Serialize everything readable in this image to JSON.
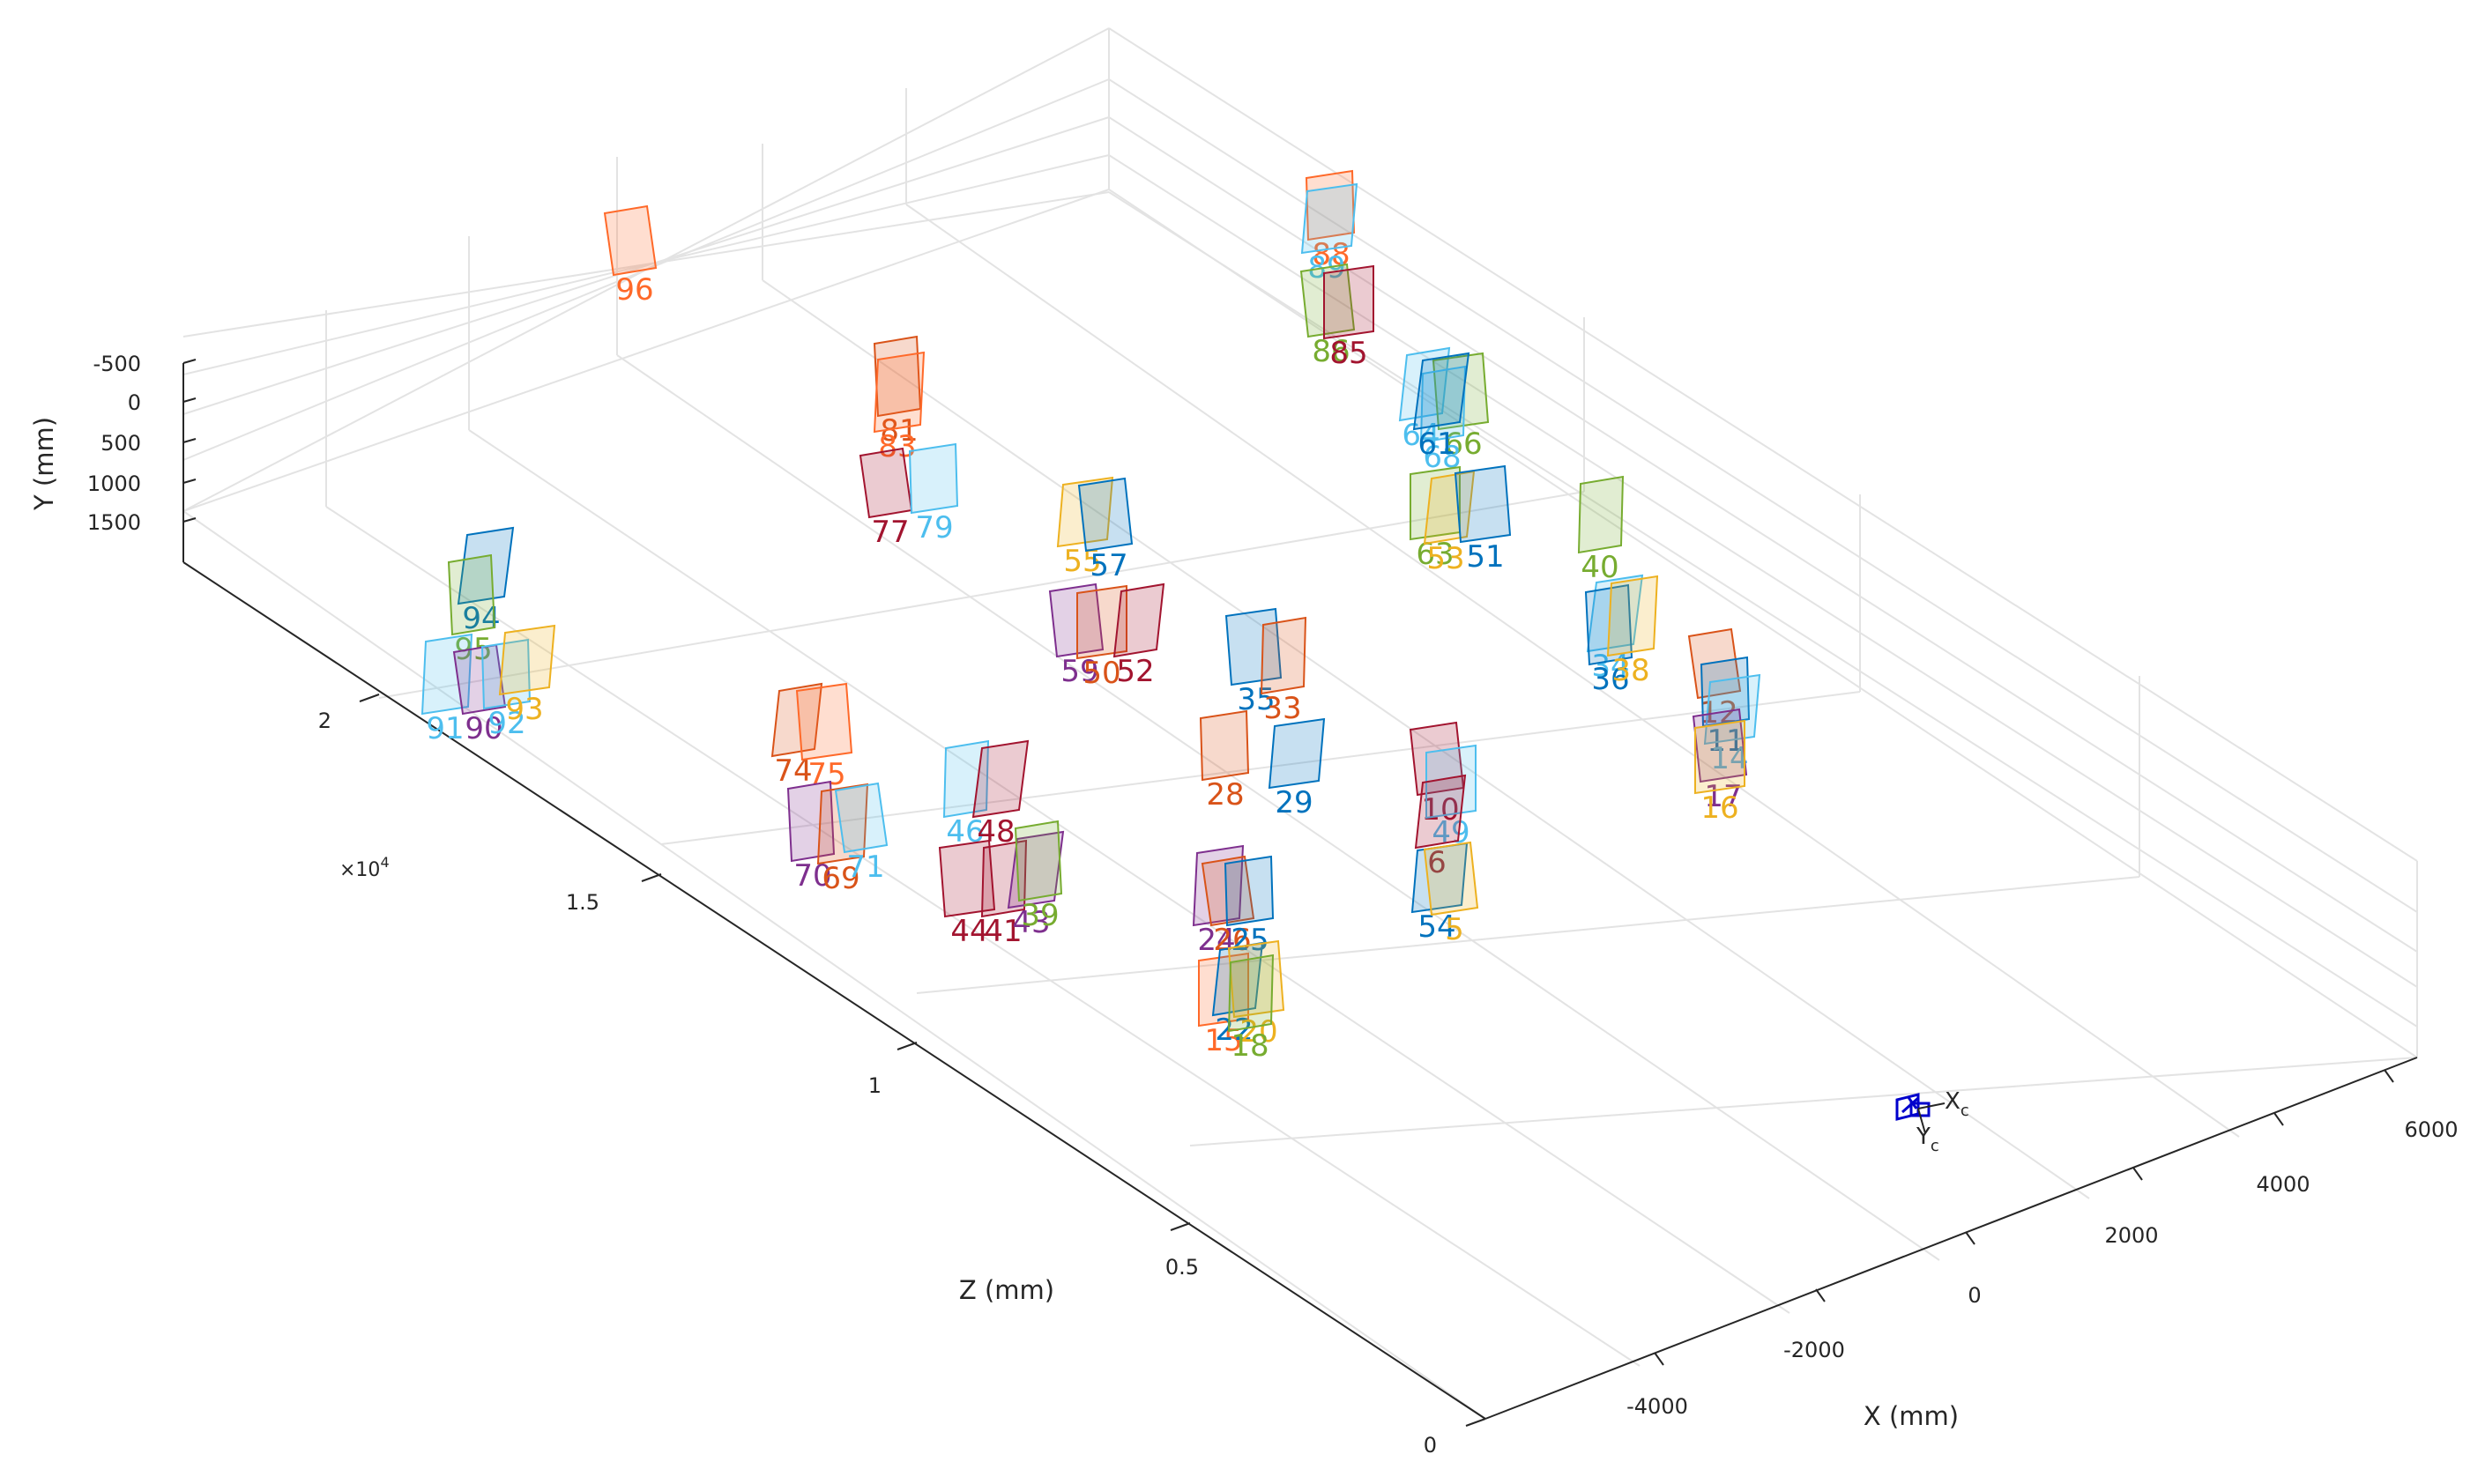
{
  "chart_data": {
    "type": "scatter",
    "subtype": "3d-extrinsics",
    "axes": {
      "x": {
        "label": "X (mm)",
        "ticks": [
          "-4000",
          "-2000",
          "0",
          "2000",
          "4000",
          "6000"
        ],
        "range": [
          -5000,
          6500
        ]
      },
      "y": {
        "label": "Y (mm)",
        "ticks": [
          "-500",
          "0",
          "500",
          "1000",
          "1500"
        ],
        "range": [
          -600,
          1800
        ]
      },
      "z": {
        "label": "Z (mm)",
        "ticks": [
          "0",
          "0.5",
          "1",
          "1.5",
          "2"
        ],
        "exponent_label": "×10",
        "exponent_power": "4",
        "range": [
          0,
          25000
        ]
      }
    },
    "grid": true,
    "camera": {
      "label_x": "X",
      "label_y": "Y",
      "subscript": "c",
      "color": "#0000cc"
    },
    "palette": [
      "#0072BD",
      "#D95319",
      "#EDB120",
      "#7E2F8E",
      "#77AC30",
      "#4DBEEE",
      "#A2142F",
      "#FF6929"
    ],
    "boards": [
      {
        "label": "96",
        "color": "#FF6929"
      },
      {
        "label": "88",
        "color": "#FF6929"
      },
      {
        "label": "89",
        "color": "#4DBEEE"
      },
      {
        "label": "86",
        "color": "#77AC30"
      },
      {
        "label": "85",
        "color": "#A2142F"
      },
      {
        "label": "64",
        "color": "#4DBEEE"
      },
      {
        "label": "66",
        "color": "#77AC30"
      },
      {
        "label": "68",
        "color": "#4DBEEE"
      },
      {
        "label": "61",
        "color": "#0072BD"
      },
      {
        "label": "81",
        "color": "#D95319"
      },
      {
        "label": "83",
        "color": "#FF6929"
      },
      {
        "label": "77",
        "color": "#A2142F"
      },
      {
        "label": "79",
        "color": "#4DBEEE"
      },
      {
        "label": "55",
        "color": "#EDB120"
      },
      {
        "label": "57",
        "color": "#0072BD"
      },
      {
        "label": "63",
        "color": "#77AC30"
      },
      {
        "label": "53",
        "color": "#EDB120"
      },
      {
        "label": "51",
        "color": "#0072BD"
      },
      {
        "label": "40",
        "color": "#77AC30"
      },
      {
        "label": "94",
        "color": "#0072BD"
      },
      {
        "label": "95",
        "color": "#77AC30"
      },
      {
        "label": "91",
        "color": "#4DBEEE"
      },
      {
        "label": "90",
        "color": "#7E2F8E"
      },
      {
        "label": "92",
        "color": "#4DBEEE"
      },
      {
        "label": "93",
        "color": "#EDB120"
      },
      {
        "label": "59",
        "color": "#7E2F8E"
      },
      {
        "label": "50",
        "color": "#D95319"
      },
      {
        "label": "52",
        "color": "#A2142F"
      },
      {
        "label": "35",
        "color": "#0072BD"
      },
      {
        "label": "33",
        "color": "#D95319"
      },
      {
        "label": "34",
        "color": "#4DBEEE"
      },
      {
        "label": "36",
        "color": "#0072BD"
      },
      {
        "label": "38",
        "color": "#EDB120"
      },
      {
        "label": "12",
        "color": "#D95319"
      },
      {
        "label": "11",
        "color": "#0072BD"
      },
      {
        "label": "14",
        "color": "#4DBEEE"
      },
      {
        "label": "17",
        "color": "#7E2F8E"
      },
      {
        "label": "16",
        "color": "#EDB120"
      },
      {
        "label": "74",
        "color": "#D95319"
      },
      {
        "label": "75",
        "color": "#FF6929"
      },
      {
        "label": "46",
        "color": "#4DBEEE"
      },
      {
        "label": "48",
        "color": "#A2142F"
      },
      {
        "label": "70",
        "color": "#7E2F8E"
      },
      {
        "label": "69",
        "color": "#D95319"
      },
      {
        "label": "71",
        "color": "#4DBEEE"
      },
      {
        "label": "28",
        "color": "#D95319"
      },
      {
        "label": "29",
        "color": "#0072BD"
      },
      {
        "label": "10",
        "color": "#A2142F"
      },
      {
        "label": "49",
        "color": "#4DBEEE"
      },
      {
        "label": "6",
        "color": "#A2142F"
      },
      {
        "label": "44",
        "color": "#A2142F"
      },
      {
        "label": "41",
        "color": "#A2142F"
      },
      {
        "label": "43",
        "color": "#7E2F8E"
      },
      {
        "label": "39",
        "color": "#77AC30"
      },
      {
        "label": "24",
        "color": "#7E2F8E"
      },
      {
        "label": "26",
        "color": "#D95319"
      },
      {
        "label": "25",
        "color": "#0072BD"
      },
      {
        "label": "54",
        "color": "#0072BD"
      },
      {
        "label": "5",
        "color": "#EDB120"
      },
      {
        "label": "15",
        "color": "#FF6929"
      },
      {
        "label": "22",
        "color": "#0072BD"
      },
      {
        "label": "20",
        "color": "#EDB120"
      },
      {
        "label": "18",
        "color": "#77AC30"
      }
    ]
  }
}
